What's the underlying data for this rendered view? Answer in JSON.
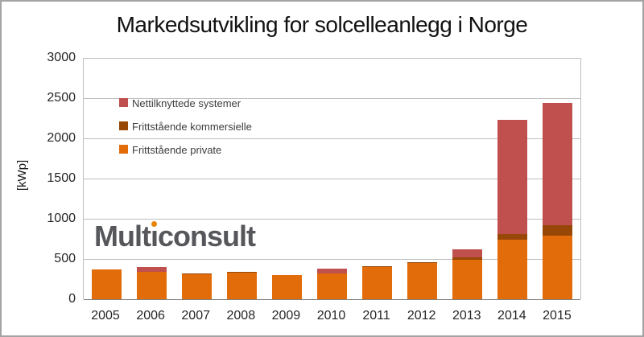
{
  "title": "Markedsutvikling for solcelleanlegg i Norge",
  "watermark": {
    "part1": "Mult",
    "dotless_i": "ı",
    "part2": "consult",
    "dot_color": "#e98300",
    "text_color": "#56575b"
  },
  "colors": {
    "grid": "#bfbfbf",
    "zero_axis": "#808080",
    "frame_border": "#a3a3a3",
    "tick_text": "#262626"
  },
  "chart_data": {
    "type": "bar",
    "stacked": true,
    "title": "Markedsutvikling for solcelleanlegg i Norge",
    "xlabel": "",
    "ylabel": "[kWp]",
    "ylim": [
      0,
      3000
    ],
    "yticks": [
      0,
      500,
      1000,
      1500,
      2000,
      2500,
      3000
    ],
    "grid": true,
    "legend_position": "inside-top-left",
    "categories": [
      "2005",
      "2006",
      "2007",
      "2008",
      "2009",
      "2010",
      "2011",
      "2012",
      "2013",
      "2014",
      "2015"
    ],
    "series": [
      {
        "name": "Frittstående private",
        "color": "#e36c0a",
        "values": [
          370,
          345,
          310,
          335,
          305,
          320,
          400,
          450,
          490,
          740,
          795
        ]
      },
      {
        "name": "Frittstående kommersielle",
        "color": "#974706",
        "values": [
          0,
          0,
          10,
          10,
          0,
          0,
          10,
          10,
          30,
          75,
          130
        ]
      },
      {
        "name": "Nettilknyttede systemer",
        "color": "#c0504d",
        "values": [
          0,
          60,
          0,
          0,
          0,
          60,
          0,
          0,
          105,
          1415,
          1515
        ]
      }
    ],
    "legend_order": [
      "Nettilknyttede systemer",
      "Frittstående kommersielle",
      "Frittstående private"
    ],
    "totals": [
      370,
      405,
      320,
      345,
      305,
      380,
      410,
      460,
      625,
      2230,
      2440
    ]
  }
}
